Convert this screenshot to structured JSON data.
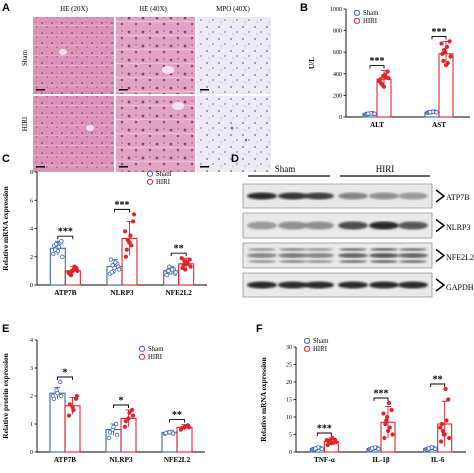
{
  "colors": {
    "sham": "#3b65b3",
    "hiri": "#e0242b",
    "he_pink": "#d990b4",
    "mpo_bg": "#eeeef4"
  },
  "panels": {
    "A": {
      "label": "A",
      "columns": [
        "HE (20X)",
        "HE (40X)",
        "MPO (40X)"
      ],
      "rows": [
        "Sham",
        "HIRI"
      ]
    },
    "D": {
      "label": "D",
      "groups": [
        "Sham",
        "HIRI"
      ],
      "bands": [
        "ATP7B",
        "NLRP3",
        "NFE2L2",
        "GAPDH"
      ]
    }
  },
  "chart_data": [
    {
      "id": "B",
      "label": "B",
      "type": "bar",
      "ylabel": "U/L",
      "ylim": [
        0,
        1000
      ],
      "yticks": [
        0,
        200,
        400,
        600,
        800,
        1000
      ],
      "categories": [
        "ALT",
        "AST"
      ],
      "legend": [
        "Sham",
        "HIRI"
      ],
      "series": [
        {
          "name": "Sham",
          "values": [
            30,
            45
          ],
          "errors": [
            8,
            8
          ]
        },
        {
          "name": "HIRI",
          "values": [
            350,
            585
          ],
          "errors": [
            80,
            115
          ]
        }
      ],
      "points": [
        [
          [
            25,
            30,
            35,
            28,
            32,
            30,
            26,
            34,
            30,
            31
          ],
          [
            350,
            280,
            420,
            310,
            390,
            360,
            300,
            370,
            330,
            380
          ]
        ],
        [
          [
            40,
            45,
            50,
            42,
            48,
            46,
            44,
            47,
            43,
            45
          ],
          [
            585,
            480,
            700,
            520,
            650,
            560,
            620,
            500,
            680,
            600
          ]
        ]
      ],
      "significance": [
        "***",
        "***"
      ]
    },
    {
      "id": "C",
      "label": "C",
      "type": "bar",
      "ylabel": "Relative mRNA expression",
      "ylim": [
        0,
        8
      ],
      "yticks": [
        0,
        2,
        4,
        6,
        8
      ],
      "categories": [
        "ATP7B",
        "NLRP3",
        "NFE2L2"
      ],
      "legend": [
        "Sham",
        "HIRI"
      ],
      "series": [
        {
          "name": "Sham",
          "values": [
            2.6,
            1.3,
            1.0
          ],
          "errors": [
            0.5,
            0.5,
            0.3
          ]
        },
        {
          "name": "HIRI",
          "values": [
            1.0,
            3.3,
            1.5
          ],
          "errors": [
            0.3,
            1.2,
            0.4
          ]
        }
      ],
      "points": [
        [
          [
            2.2,
            2.6,
            3.0,
            2.8,
            2.4,
            3.1,
            2.5,
            2.7,
            2.0,
            2.9
          ],
          [
            0.8,
            1.0,
            1.2,
            0.9,
            1.1,
            1.0,
            0.7,
            1.3,
            0.9,
            1.0
          ]
        ],
        [
          [
            0.8,
            1.0,
            1.5,
            1.8,
            1.2,
            1.3,
            0.9,
            1.6,
            1.1,
            1.4
          ],
          [
            2.0,
            3.0,
            4.5,
            2.5,
            3.5,
            5.0,
            3.2,
            2.8,
            3.8,
            3.1
          ]
        ],
        [
          [
            0.7,
            0.9,
            1.1,
            1.0,
            1.2,
            0.8,
            1.0,
            1.1,
            0.9,
            1.3
          ],
          [
            1.2,
            1.5,
            1.8,
            1.4,
            1.6,
            1.3,
            1.7,
            1.5,
            1.9,
            1.1
          ]
        ]
      ],
      "significance": [
        "***",
        "***",
        "**"
      ]
    },
    {
      "id": "E",
      "label": "E",
      "type": "bar",
      "ylabel": "Relative protein expression",
      "ylim": [
        0,
        4
      ],
      "yticks": [
        0,
        1,
        2,
        3,
        4
      ],
      "categories": [
        "ATP7B",
        "NLRP3",
        "NFE2L2"
      ],
      "legend": [
        "Sham",
        "HIRI"
      ],
      "series": [
        {
          "name": "Sham",
          "values": [
            2.1,
            0.8,
            0.7
          ],
          "errors": [
            0.2,
            0.2,
            0.05
          ]
        },
        {
          "name": "HIRI",
          "values": [
            1.65,
            1.2,
            0.88
          ],
          "errors": [
            0.3,
            0.3,
            0.1
          ]
        }
      ],
      "points": [
        [
          [
            2.0,
            2.2,
            2.5,
            1.9,
            2.1,
            2.0
          ],
          [
            1.3,
            1.6,
            1.9,
            1.7,
            1.5,
            2.0
          ]
        ],
        [
          [
            0.5,
            0.8,
            1.0,
            0.7,
            0.9,
            0.6
          ],
          [
            0.9,
            1.2,
            1.5,
            1.1,
            1.4,
            1.3
          ]
        ],
        [
          [
            0.65,
            0.7,
            0.72,
            0.68,
            0.7,
            0.66
          ],
          [
            0.8,
            0.9,
            0.95,
            0.85,
            0.9,
            0.88
          ]
        ]
      ],
      "significance": [
        "*",
        "*",
        "**"
      ]
    },
    {
      "id": "F",
      "label": "F",
      "type": "bar",
      "ylabel": "Relative mRNA expression",
      "ylim": [
        0,
        30
      ],
      "yticks": [
        0,
        5,
        10,
        15,
        20,
        25,
        30
      ],
      "categories": [
        "TNF-α",
        "IL-1β",
        "IL-6"
      ],
      "legend": [
        "Sham",
        "HIRI"
      ],
      "series": [
        {
          "name": "Sham",
          "values": [
            1.0,
            1.0,
            1.0
          ],
          "errors": [
            0.3,
            0.3,
            0.3
          ]
        },
        {
          "name": "HIRI",
          "values": [
            3.0,
            8.5,
            8.0
          ],
          "errors": [
            1.0,
            4.5,
            6.5
          ]
        }
      ],
      "points": [
        [
          [
            0.8,
            1.0,
            1.2,
            0.9,
            1.1,
            1.0,
            0.7,
            1.3,
            0.9,
            1.0
          ],
          [
            2.0,
            2.5,
            3.5,
            3.0,
            4.0,
            2.8,
            3.2,
            2.6,
            3.4,
            3.0
          ]
        ],
        [
          [
            0.8,
            1.0,
            1.2,
            0.9,
            1.1,
            1.0,
            0.7,
            1.3,
            0.9,
            1.0
          ],
          [
            4.0,
            6.0,
            12.0,
            8.0,
            14.0,
            5.0,
            9.0,
            7.0,
            11.0,
            10.0
          ]
        ],
        [
          [
            0.8,
            1.0,
            1.2,
            0.9,
            1.1,
            1.0,
            0.7,
            1.3,
            0.9,
            1.0
          ],
          [
            3.0,
            5.0,
            15.0,
            8.0,
            18.0,
            4.0,
            6.0,
            9.0,
            7.0,
            5.0
          ]
        ]
      ],
      "significance": [
        "***",
        "***",
        "**"
      ]
    }
  ]
}
